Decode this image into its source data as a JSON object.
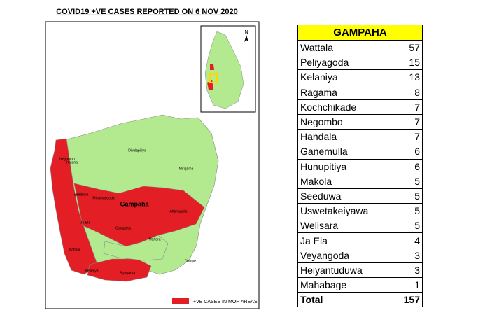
{
  "header": {
    "title": "COVID19 +VE CASES REPORTED ON 6 NOV 2020"
  },
  "map": {
    "north": "N",
    "legend": "+VE CASES IN MOH AREAS",
    "labels": [
      "Divulapitiya",
      "Katana",
      "Negombo",
      "Minuwangoda",
      "Gampaha",
      "Mirigama",
      "Attanagalla",
      "Seeduwa",
      "Ja-Ela",
      "Gampaha",
      "Wattala",
      "Kelaniya",
      "Biyagama",
      "Mahara",
      "Dompe"
    ]
  },
  "table": {
    "title": "GAMPAHA",
    "rows": [
      [
        "Wattala",
        57
      ],
      [
        "Peliyagoda",
        15
      ],
      [
        "Kelaniya",
        13
      ],
      [
        "Ragama",
        8
      ],
      [
        "Kochchikade",
        7
      ],
      [
        "Negombo",
        7
      ],
      [
        "Handala",
        7
      ],
      [
        "Ganemulla",
        6
      ],
      [
        "Hunupitiya",
        6
      ],
      [
        "Makola",
        5
      ],
      [
        "Seeduwa",
        5
      ],
      [
        "Uswetakeiyawa",
        5
      ],
      [
        "Welisara",
        5
      ],
      [
        "Ja Ela",
        4
      ],
      [
        "Veyangoda",
        3
      ],
      [
        "Heiyantuduwa",
        3
      ],
      [
        "Mahabage",
        1
      ]
    ],
    "total": [
      "Total",
      157
    ]
  }
}
